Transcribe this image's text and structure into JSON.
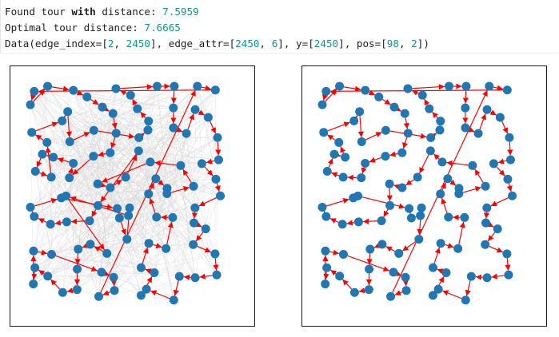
{
  "output": {
    "line1": {
      "prefix": "Found tour ",
      "keyword": "with",
      "mid": " distance: ",
      "value": "7.5959"
    },
    "line2": {
      "prefix": "Optimal tour distance: ",
      "value": "7.6665"
    },
    "line3": {
      "p1": "Data(edge_index=[",
      "v1": "2",
      "s1": ", ",
      "v2": "2450",
      "p2": "], edge_attr=[",
      "v3": "2450",
      "s2": ", ",
      "v4": "6",
      "p3": "], y=[",
      "v5": "2450",
      "p4": "], pos=[",
      "v6": "98",
      "s3": ", ",
      "v7": "2",
      "p5": "])"
    }
  },
  "colors": {
    "node": "#1f77b4",
    "edge": "#ff0000",
    "background_graph": "#d8d8d8",
    "number": "#0f9690"
  },
  "plots": [
    {
      "name": "found-tour",
      "nodes": 98,
      "background_edges": 2450
    },
    {
      "name": "optimal-tour",
      "nodes": 98
    }
  ]
}
